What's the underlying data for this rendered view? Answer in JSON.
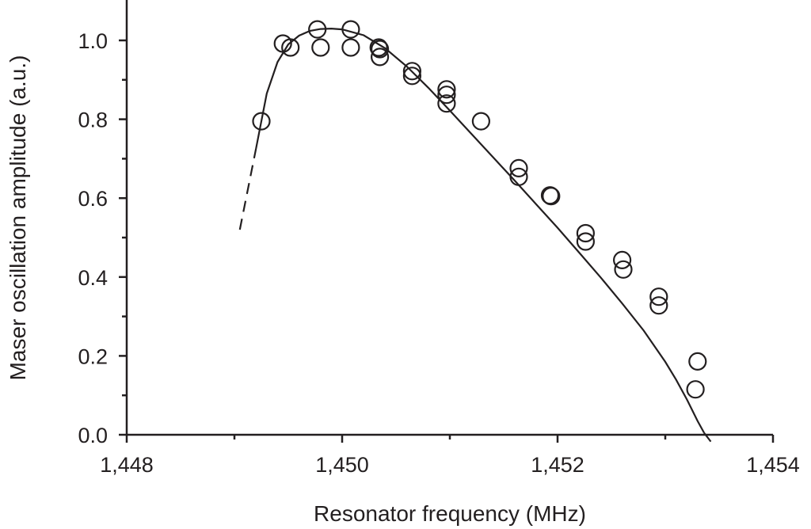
{
  "chart_data": {
    "type": "scatter",
    "title": "",
    "xlabel": "Resonator frequency (MHz)",
    "ylabel": "Maser oscillation amplitude (a.u.)",
    "xlim": [
      1448,
      1454
    ],
    "ylim": [
      0,
      1.1
    ],
    "x_ticks": [
      1448,
      1450,
      1452,
      1454
    ],
    "x_tick_labels": [
      "1,448",
      "1,450",
      "1,452",
      "1,454"
    ],
    "y_ticks": [
      0,
      0.2,
      0.4,
      0.6,
      0.8,
      1.0
    ],
    "y_tick_labels": [
      "0.0",
      "0.2",
      "0.4",
      "0.6",
      "0.8",
      "1.0"
    ],
    "grid": false,
    "legend": "none",
    "series": [
      {
        "type": "scatter",
        "marker": "open-circle",
        "points": [
          [
            1449.25,
            0.795
          ],
          [
            1449.45,
            0.992
          ],
          [
            1449.52,
            0.982
          ],
          [
            1449.77,
            1.028
          ],
          [
            1449.8,
            0.982
          ],
          [
            1450.08,
            1.028
          ],
          [
            1450.08,
            0.982
          ],
          [
            1450.34,
            0.982
          ],
          [
            1450.35,
            0.978
          ],
          [
            1450.35,
            0.958
          ],
          [
            1450.65,
            0.922
          ],
          [
            1450.65,
            0.91
          ],
          [
            1450.97,
            0.876
          ],
          [
            1450.97,
            0.862
          ],
          [
            1450.97,
            0.84
          ],
          [
            1451.29,
            0.795
          ],
          [
            1451.64,
            0.676
          ],
          [
            1451.64,
            0.654
          ],
          [
            1451.93,
            0.607
          ],
          [
            1451.94,
            0.605
          ],
          [
            1452.26,
            0.511
          ],
          [
            1452.26,
            0.49
          ],
          [
            1452.6,
            0.443
          ],
          [
            1452.61,
            0.419
          ],
          [
            1452.94,
            0.35
          ],
          [
            1452.94,
            0.328
          ],
          [
            1453.3,
            0.186
          ],
          [
            1453.28,
            0.115
          ]
        ]
      },
      {
        "type": "line",
        "style": "solid",
        "x": [
          1449.2,
          1449.3,
          1449.4,
          1449.5,
          1449.6,
          1449.7,
          1449.8,
          1449.9,
          1450.0,
          1450.2,
          1450.4,
          1450.6,
          1450.8,
          1451.0,
          1451.2,
          1451.4,
          1451.6,
          1451.8,
          1452.0,
          1452.2,
          1452.4,
          1452.6,
          1452.8,
          1453.0,
          1453.1,
          1453.2,
          1453.3,
          1453.36
        ],
        "y": [
          0.725,
          0.865,
          0.945,
          0.99,
          1.012,
          1.024,
          1.029,
          1.03,
          1.028,
          1.013,
          0.98,
          0.934,
          0.88,
          0.822,
          0.763,
          0.704,
          0.645,
          0.585,
          0.525,
          0.462,
          0.399,
          0.333,
          0.264,
          0.185,
          0.14,
          0.09,
          0.035,
          0.005
        ]
      },
      {
        "type": "line",
        "style": "dashed",
        "x": [
          1449.05,
          1449.2
        ],
        "y": [
          0.52,
          0.725
        ]
      },
      {
        "type": "line",
        "style": "dashed",
        "x": [
          1453.36,
          1453.43
        ],
        "y": [
          0.005,
          -0.02
        ]
      }
    ]
  }
}
